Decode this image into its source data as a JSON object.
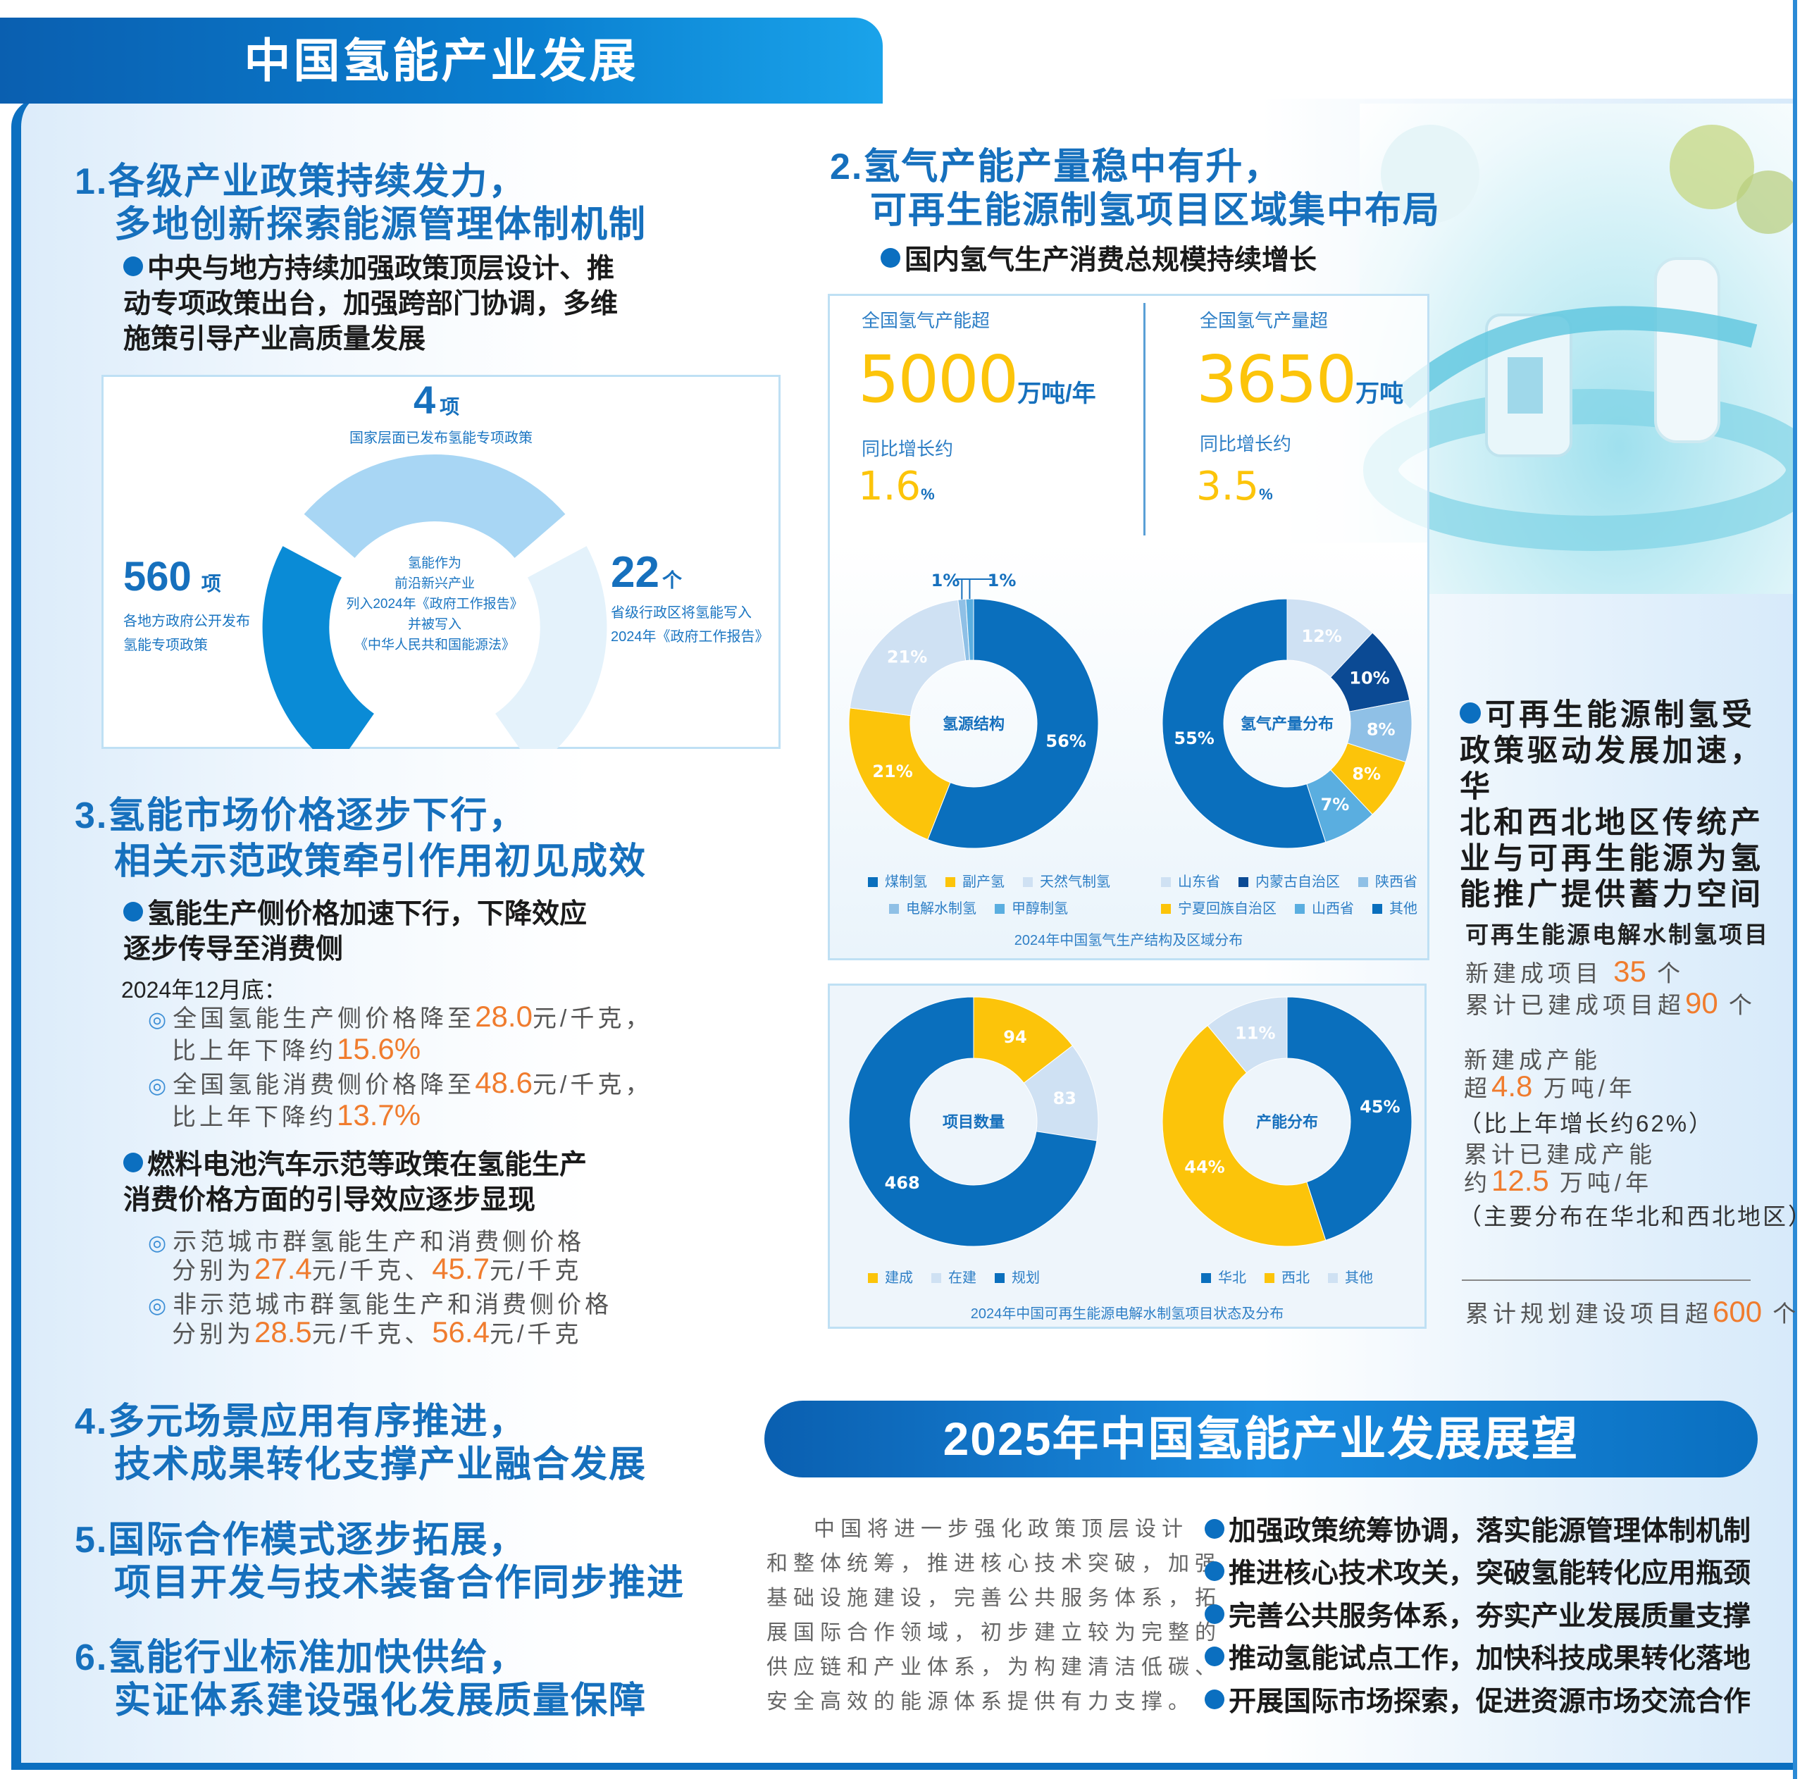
{
  "header": {
    "title": "中国氢能产业发展"
  },
  "section1": {
    "title_lines": [
      "1.各级产业政策持续发力，",
      "多地创新探索能源管理体制机制"
    ],
    "bullet_lines": [
      "中央与地方持续加强政策顶层设计、推",
      "动专项政策出台，加强跨部门协调，多维",
      "施策引导产业高质量发展"
    ],
    "policy": {
      "top_value": "4",
      "top_unit": "项",
      "top_desc": "国家层面已发布氢能专项政策",
      "left_value": "560",
      "left_unit": "项",
      "left_desc": [
        "各地方政府公开发布",
        "氢能专项政策"
      ],
      "right_value": "22",
      "right_unit": "个",
      "right_desc": [
        "省级行政区将氢能写入",
        "2024年《政府工作报告》"
      ],
      "center": [
        "氢能作为",
        "前沿新兴产业",
        "列入2024年《政府工作报告》",
        "并被写入",
        "《中华人民共和国能源法》"
      ]
    }
  },
  "section3": {
    "title_lines": [
      "3.氢能市场价格逐步下行，",
      "相关示范政策牵引作用初见成效"
    ],
    "bullet1_lines": [
      "氢能生产侧价格加速下行，下降效应",
      "逐步传导至消费侧"
    ],
    "date": "2024年12月底：",
    "items1": [
      {
        "a": "全国氢能生产侧价格降至",
        "n": "28.0",
        "b": "元/千克，",
        "c": "比上年下降约",
        "m": "15.6%"
      },
      {
        "a": "全国氢能消费侧价格降至",
        "n": "48.6",
        "b": "元/千克，",
        "c": "比上年下降约",
        "m": "13.7%"
      }
    ],
    "bullet2_lines": [
      "燃料电池汽车示范等政策在氢能生产",
      "消费价格方面的引导效应逐步显现"
    ],
    "items2": [
      {
        "a": "示范城市群氢能生产和消费侧价格",
        "c": "分别为",
        "n1": "27.4",
        "u1": "元/千克、",
        "n2": "45.7",
        "u2": "元/千克"
      },
      {
        "a": "非示范城市群氢能生产和消费侧价格",
        "c": "分别为",
        "n1": "28.5",
        "u1": "元/千克、",
        "n2": "56.4",
        "u2": "元/千克"
      }
    ]
  },
  "section4": {
    "title_lines": [
      "4.多元场景应用有序推进，",
      "技术成果转化支撑产业融合发展"
    ]
  },
  "section5": {
    "title_lines": [
      "5.国际合作模式逐步拓展，",
      "项目开发与技术装备合作同步推进"
    ]
  },
  "section6": {
    "title_lines": [
      "6.氢能行业标准加快供给，",
      "实证体系建设强化发展质量保障"
    ]
  },
  "section2": {
    "title_lines": [
      "2.氢气产能产量稳中有升，",
      "可再生能源制氢项目区域集中布局"
    ],
    "bullet": "国内氢气生产消费总规模持续增长",
    "stats": [
      {
        "label": "全国氢气产能超",
        "value": "5000",
        "unit": "万吨/年",
        "growth_label": "同比增长约",
        "growth": "1.6",
        "growth_unit": "%"
      },
      {
        "label": "全国氢气产量超",
        "value": "3650",
        "unit": "万吨",
        "growth_label": "同比增长约",
        "growth": "3.5",
        "growth_unit": "%"
      }
    ],
    "caption1": "2024年中国氢气生产结构及区域分布",
    "caption2": "2024年中国可再生能源电解水制氢项目状态及分布"
  },
  "renewable": {
    "heading_lines": [
      "可再生能源制氢受",
      "政策驱动发展加速，华",
      "北和西北地区传统产",
      "业与可再生能源为氢",
      "能推广提供蓄力空间"
    ],
    "sub": "可再生能源电解水制氢项目",
    "l1a": "新建成项目",
    "l1n": "35",
    "l1u": "个",
    "l2a": "累计已建成项目超",
    "l2n": "90",
    "l2u": "个",
    "l3": "新建成产能",
    "l4a": "超",
    "l4n": "4.8",
    "l4u": "万吨/年",
    "l5": "（比上年增长约62%）",
    "l6": "累计已建成产能",
    "l7a": "约",
    "l7n": "12.5",
    "l7u": "万吨/年",
    "l8": "（主要分布在华北和西北地区）",
    "l9a": "累计规划建设项目超",
    "l9n": "600",
    "l9u": "个"
  },
  "outlook": {
    "title": "2025年中国氢能产业发展展望",
    "paragraph_lines": [
      "中国将进一步强化政策顶层设计",
      "和整体统筹，推进核心技术突破，加强",
      "基础设施建设，完善公共服务体系，拓",
      "展国际合作领域，初步建立较为完整的",
      "供应链和产业体系，为构建清洁低碳、",
      "安全高效的能源体系提供有力支撑。"
    ],
    "points": [
      "加强政策统筹协调，落实能源管理体制机制",
      "推进核心技术攻关，突破氢能转化应用瓶颈",
      "完善公共服务体系，夯实产业发展质量支撑",
      "推动氢能试点工作，加快科技成果转化落地",
      "开展国际市场探索，促进资源市场交流合作"
    ]
  },
  "colors": {
    "blue": "#0a6fbd",
    "yellow": "#fcc40a",
    "light": "#cfe1f3",
    "mid": "#8fc0e6",
    "navy": "#0b4a94",
    "sky": "#5aaee0",
    "orange": "#f07c2e"
  },
  "chart_data": [
    {
      "type": "pie",
      "donut": true,
      "center_label": "氢源结构",
      "unit": "%",
      "categories": [
        "煤制氢",
        "副产氢",
        "天然气制氢",
        "电解水制氢",
        "甲醇制氢"
      ],
      "values": [
        56,
        21,
        21,
        1,
        1
      ],
      "colors": [
        "#0a6fbd",
        "#fcc40a",
        "#cfe1f3",
        "#8fc0e6",
        "#5aaee0"
      ],
      "legend": "bottom"
    },
    {
      "type": "pie",
      "donut": true,
      "center_label": "氢气产量分布",
      "unit": "%",
      "categories": [
        "山东省",
        "内蒙古自治区",
        "陕西省",
        "宁夏回族自治区",
        "山西省",
        "其他"
      ],
      "values": [
        12,
        10,
        8,
        8,
        7,
        55
      ],
      "colors": [
        "#cfe1f3",
        "#0b4a94",
        "#8fc0e6",
        "#fcc40a",
        "#5aaee0",
        "#0a6fbd"
      ],
      "legend": "bottom"
    },
    {
      "type": "pie",
      "donut": true,
      "center_label": "项目数量",
      "unit": "",
      "categories": [
        "建成",
        "在建",
        "规划"
      ],
      "values": [
        94,
        83,
        468
      ],
      "colors": [
        "#fcc40a",
        "#cfe1f3",
        "#0a6fbd"
      ],
      "legend": "bottom"
    },
    {
      "type": "pie",
      "donut": true,
      "center_label": "产能分布",
      "unit": "%",
      "categories": [
        "华北",
        "西北",
        "其他"
      ],
      "values": [
        45,
        44,
        11
      ],
      "colors": [
        "#0a6fbd",
        "#fcc40a",
        "#cfe1f3"
      ],
      "legend": "bottom"
    }
  ]
}
